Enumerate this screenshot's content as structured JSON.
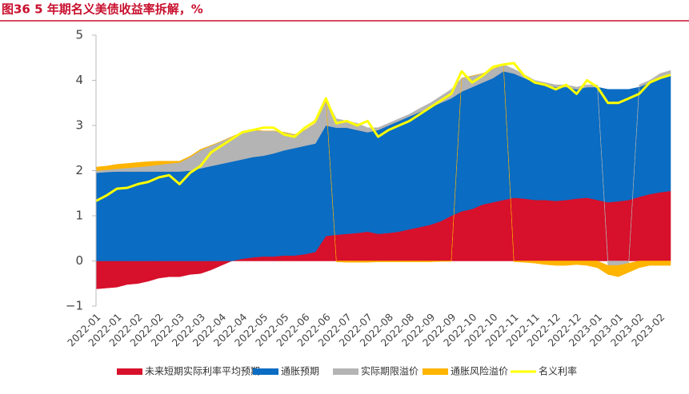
{
  "chart_data": {
    "type": "stacked_area_line",
    "title": "图36  5 年期名义美债收益率拆解，%",
    "categories": [
      "2022-01",
      null,
      "2022-01",
      null,
      "2022-02",
      null,
      "2022-02",
      null,
      "2022-03",
      null,
      "2022-03",
      null,
      "2022-04",
      null,
      "2022-04",
      null,
      "2022-05",
      null,
      "2022-05",
      null,
      "2022-06",
      null,
      "2022-06",
      null,
      "2022-07",
      null,
      "2022-07",
      null,
      "2022-08",
      null,
      "2022-08",
      null,
      "2022-09",
      null,
      "2022-09",
      null,
      "2022-10",
      null,
      "2022-10",
      null,
      "2022-11",
      null,
      "2022-11",
      null,
      "2022-12",
      null,
      "2022-12",
      null,
      "2023-01",
      null,
      "2023-01",
      null,
      "2023-02",
      null,
      "2023-02",
      null
    ],
    "series": [
      {
        "name": "未来短期实际利率平均预期",
        "color": "#d7102b",
        "kind": "area",
        "values": [
          -0.62,
          -0.6,
          -0.58,
          -0.52,
          -0.5,
          -0.45,
          -0.38,
          -0.35,
          -0.35,
          -0.3,
          -0.28,
          -0.2,
          -0.1,
          0,
          0.05,
          0.08,
          0.1,
          0.1,
          0.12,
          0.12,
          0.15,
          0.2,
          0.55,
          0.58,
          0.6,
          0.62,
          0.65,
          0.6,
          0.62,
          0.65,
          0.7,
          0.75,
          0.8,
          0.88,
          1.0,
          1.1,
          1.15,
          1.25,
          1.3,
          1.35,
          1.4,
          1.38,
          1.35,
          1.35,
          1.33,
          1.35,
          1.38,
          1.4,
          1.35,
          1.3,
          1.32,
          1.35,
          1.42,
          1.48,
          1.52,
          1.55
        ]
      },
      {
        "name": "通胀预期",
        "color": "#0a6cc2",
        "kind": "area",
        "values": [
          1.95,
          1.97,
          1.98,
          1.98,
          1.98,
          1.98,
          1.98,
          1.98,
          1.98,
          2.0,
          2.05,
          2.1,
          2.15,
          2.2,
          2.2,
          2.22,
          2.23,
          2.28,
          2.33,
          2.38,
          2.4,
          2.4,
          2.45,
          2.37,
          2.35,
          2.28,
          2.2,
          2.3,
          2.38,
          2.45,
          2.5,
          2.55,
          2.6,
          2.62,
          2.6,
          2.65,
          2.7,
          2.7,
          2.75,
          2.85,
          2.75,
          2.67,
          2.6,
          2.55,
          2.52,
          2.5,
          2.42,
          2.45,
          2.5,
          2.5,
          2.48,
          2.45,
          2.43,
          2.47,
          2.53,
          2.55
        ]
      },
      {
        "name": "实际期限溢价",
        "color": "#b4b4b4",
        "kind": "area",
        "values": [
          0.05,
          0.05,
          0.06,
          0.08,
          0.1,
          0.12,
          0.15,
          0.18,
          0.2,
          0.3,
          0.4,
          0.45,
          0.5,
          0.55,
          0.6,
          0.6,
          0.55,
          0.5,
          0.4,
          0.3,
          0.35,
          0.45,
          0.6,
          0.2,
          0.15,
          0.15,
          0.1,
          0.05,
          0.05,
          0.05,
          0.05,
          0.08,
          0.1,
          0.15,
          0.2,
          0.3,
          0.25,
          0.2,
          0.2,
          0.15,
          0.1,
          0.08,
          0.05,
          0.05,
          0.05,
          0.05,
          0.05,
          0.05,
          0.05,
          -0.1,
          -0.1,
          -0.05,
          0.05,
          0.05,
          0.1,
          0.12
        ]
      },
      {
        "name": "通胀风险溢价",
        "color": "#ffb400",
        "kind": "area",
        "values": [
          0.08,
          0.08,
          0.1,
          0.1,
          0.1,
          0.1,
          0.08,
          0.05,
          0.03,
          0.02,
          0.02,
          0.01,
          0,
          0,
          0,
          0,
          0,
          0,
          0,
          0,
          0,
          0,
          0,
          -0.02,
          -0.03,
          -0.03,
          -0.03,
          -0.02,
          -0.02,
          -0.02,
          -0.02,
          -0.02,
          -0.02,
          -0.01,
          -0.01,
          0,
          0,
          0,
          0,
          0,
          -0.02,
          -0.03,
          -0.05,
          -0.08,
          -0.1,
          -0.1,
          -0.08,
          -0.1,
          -0.15,
          -0.2,
          -0.25,
          -0.2,
          -0.15,
          -0.1,
          -0.1,
          -0.1
        ]
      },
      {
        "name": "名义利率",
        "color": "#ffff00",
        "kind": "line",
        "values": [
          1.33,
          1.45,
          1.6,
          1.62,
          1.7,
          1.75,
          1.85,
          1.9,
          1.7,
          1.95,
          2.1,
          2.4,
          2.55,
          2.7,
          2.85,
          2.9,
          2.95,
          2.95,
          2.8,
          2.75,
          2.95,
          3.1,
          3.6,
          3.05,
          3.1,
          3.0,
          3.1,
          2.75,
          2.9,
          3.0,
          3.1,
          3.25,
          3.4,
          3.55,
          3.7,
          4.2,
          3.95,
          4.1,
          4.3,
          4.35,
          4.38,
          4.1,
          3.95,
          3.9,
          3.8,
          3.9,
          3.7,
          4.0,
          3.85,
          3.5,
          3.5,
          3.6,
          3.7,
          3.95,
          4.05,
          4.12
        ]
      }
    ],
    "ylim": [
      -1,
      5
    ],
    "yticks": [
      {
        "value": -1,
        "label": "−1"
      },
      0,
      1,
      2,
      3,
      4,
      5
    ],
    "legend": "bottom"
  }
}
